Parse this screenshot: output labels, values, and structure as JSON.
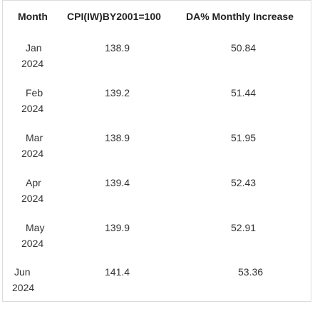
{
  "table": {
    "headers": [
      "Month",
      "CPI(IW)BY2001=100",
      "DA% Monthly Increase"
    ],
    "rows": [
      {
        "month": "Jan",
        "year": "2024",
        "cpi": "138.9",
        "da": "50.84"
      },
      {
        "month": "Feb",
        "year": "2024",
        "cpi": "139.2",
        "da": "51.44"
      },
      {
        "month": "Mar",
        "year": "2024",
        "cpi": "138.9",
        "da": "51.95"
      },
      {
        "month": "Apr",
        "year": "2024",
        "cpi": "139.4",
        "da": "52.43"
      },
      {
        "month": "May",
        "year": "2024",
        "cpi": "139.9",
        "da": "52.91"
      },
      {
        "month": "Jun",
        "year": "2024",
        "cpi": "141.4",
        "da": "53.36"
      }
    ]
  }
}
